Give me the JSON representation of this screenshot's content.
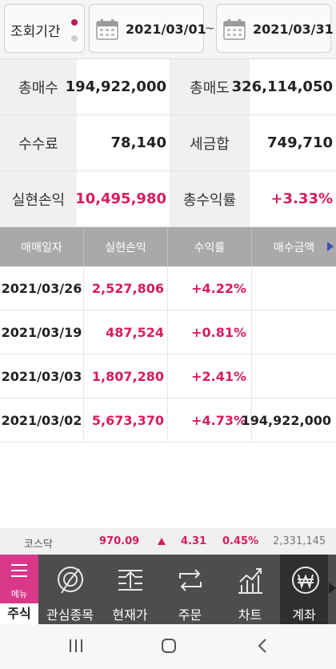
{
  "period": {
    "label": "조회기간",
    "start_date": "2021/03/01",
    "separator": "~",
    "end_date": "2021/03/31"
  },
  "summary": [
    {
      "label1": "총매수",
      "value1": "194,922,000",
      "label2": "총매도",
      "value2": "326,114,050"
    },
    {
      "label1": "수수료",
      "value1": "78,140",
      "label2": "세금합",
      "value2": "749,710"
    },
    {
      "label1": "실현손익",
      "value1": "10,495,980",
      "label2": "총수익률",
      "value2": "+3.33%"
    }
  ],
  "table": {
    "headers": [
      "매매일자",
      "실현손익",
      "수익률",
      "매수금액"
    ],
    "rows": [
      {
        "date": "2021/03/26",
        "pnl": "2,527,806",
        "rate": "+4.22%",
        "buy": ""
      },
      {
        "date": "2021/03/19",
        "pnl": "487,524",
        "rate": "+0.81%",
        "buy": ""
      },
      {
        "date": "2021/03/03",
        "pnl": "1,807,280",
        "rate": "+2.41%",
        "buy": ""
      },
      {
        "date": "2021/03/02",
        "pnl": "5,673,370",
        "rate": "+4.73%",
        "buy": "194,922,000"
      }
    ]
  },
  "ticker": {
    "name": "코스닥",
    "price": "970.09",
    "change": "4.31",
    "percent": "0.45%",
    "volume": "2,331,145"
  },
  "nav": {
    "menu_label": "메뉴",
    "stock_label": "주식",
    "items": [
      {
        "label": "관심종목",
        "icon": "watchlist-icon"
      },
      {
        "label": "현재가",
        "icon": "current-price-icon"
      },
      {
        "label": "주문",
        "icon": "order-icon"
      },
      {
        "label": "차트",
        "icon": "chart-icon"
      },
      {
        "label": "계좌",
        "icon": "won-account-icon"
      }
    ],
    "active_index": 4
  },
  "colors": {
    "accent": "#d81b60",
    "menu": "#d8378a",
    "header_gray": "#a9a9a9",
    "nav_bg": "#4d4d4d"
  }
}
